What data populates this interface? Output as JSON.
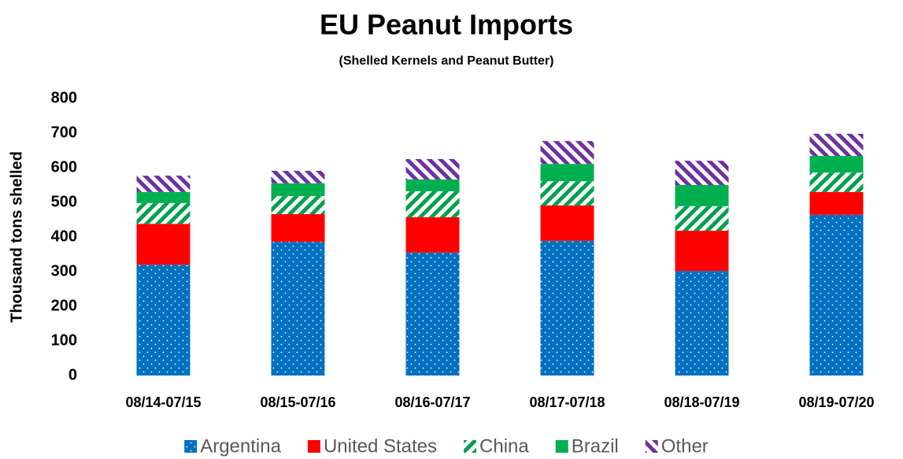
{
  "chart_data": {
    "type": "bar",
    "stacked": true,
    "title": "EU Peanut Imports",
    "subtitle": "(Shelled Kernels and Peanut Butter)",
    "y_label": "Thousand tons shelled",
    "categories": [
      "08/14-07/15",
      "08/15-07/16",
      "08/16-07/17",
      "08/17-07/18",
      "08/18-07/19",
      "08/19-07/20"
    ],
    "series": [
      {
        "name": "Argentina",
        "color": "#0070c0",
        "pattern": "dots",
        "values": [
          320,
          386,
          355,
          389,
          302,
          464
        ]
      },
      {
        "name": "United States",
        "color": "#ff0000",
        "pattern": "solid",
        "values": [
          118,
          80,
          102,
          102,
          116,
          66
        ]
      },
      {
        "name": "China",
        "color": "#00a050",
        "pattern": "hatch",
        "values": [
          60,
          52,
          75,
          70,
          71,
          56
        ]
      },
      {
        "name": "Brazil",
        "color": "#00b050",
        "pattern": "solid",
        "values": [
          32,
          37,
          34,
          50,
          61,
          48
        ]
      },
      {
        "name": "Other",
        "color": "#7030a0",
        "pattern": "hatch-reverse",
        "values": [
          47,
          36,
          59,
          66,
          70,
          64
        ]
      }
    ],
    "ylim": [
      0,
      800
    ],
    "yticks": [
      0,
      100,
      200,
      300,
      400,
      500,
      600,
      700,
      800
    ],
    "grid": false,
    "legend": "bottom"
  }
}
